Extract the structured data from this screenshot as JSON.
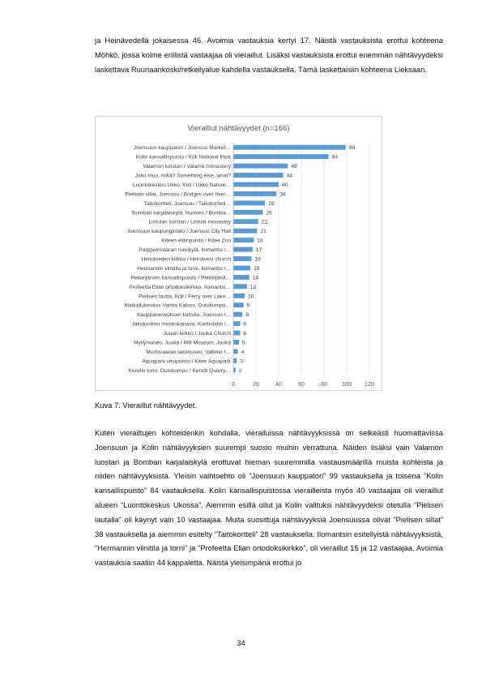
{
  "paragraph_1": "ja Heinävedellä jokaisessa 46. Avoimia vastauksia kertyi 17. Näistä vastauksista erottui kohteena Möhkö, jossa kolme erillistä vastaajaa oli vieraillut. Lisäksi vastauksista erottui enemmän nähtävyydeksi laskettava Ruunaankoski/retkeilyalue kahdella vastauksella. Tämä laskettaisiin kohteena Lieksaan.",
  "caption": "Kuva 7. Vieraillut nähtävyydet.",
  "paragraph_2": "Kuten vierailtujen kohteidenkin kohdalla, vierailuissa nähtävyyksissä on selkeästi huomattavissa Joensuun ja Kolin nähtävyyksien suurempi suosio muihin verrattuna. Näiden lisäksi vain Valamon luostari ja Bomban karjalaiskylä erottuvat hieman suuremmilla vastausmäärillä muista kohteista ja niiden nähtävyyksistä. Yleisin vaihtoehto oli ”Joensuun kauppatori” 99 vastauksella ja toisena ”Kolin kansallispuisto” 84 vastauksella. Kolin kansallispuistossa vierailleista myös 40 vastaajaa oli vieraillut alueen ”Luontokeskus Ukossa”. Aiemmin esillä ollut ja Kolin valituksi nähtävyydeksi otetulla ”Pielisen lautalla” oli käynyt vain 10 vastaajaa. Muita suosittuja nähtävyyksiä Joensuussa olivat ”Pielisen sillat” 38 vastauksella ja aiemmin esitelty ”Taitokortteli” 28 vastauksella. Ilomantsin esitellyistä nähtävyyksistä, ”Hermannin viinitila ja torni” ja ”Profeetta Elian ortodoksikirkko”, oli vieraillut 15 ja 12 vastaajaa. Avoimia vastauksia saatiin 44 kappaletta. Näistä yleisimpänä erottui jo",
  "page_number": "34",
  "chart_data": {
    "type": "bar",
    "orientation": "horizontal",
    "title": "Vieraillut nähtävyydet (n=166)",
    "xlabel": "",
    "ylabel": "",
    "xlim": [
      0,
      120
    ],
    "x_ticks": [
      "0",
      "20",
      "40",
      "60",
      "80",
      "100",
      "120"
    ],
    "grid": true,
    "bar_color": "#5b9bd5",
    "categories": [
      "Joensuun kauppatori / Joensuu Market…",
      "Kolin kansallispuisto / Koli National Park",
      "Valamon luostari / Valamo monastery",
      "Joku muu, mikä? Something else, what?",
      "Luontokeskus Ukko, Koli / Ukko Nature…",
      "Pielisen sillat, Joensuu / Bridges over river…",
      "Taitokortteli, Joensuu / Taitokortteli…",
      "Bomban karjalaiskylä, Nurmes / Bomba…",
      "Lintulan luostari / Lintula monastey",
      "Joensuun kaupungintalo / Joensuu City Hall",
      "Kiteen eläinpuisto / Kitee Zoo",
      "Parppeinvaaran runokylä, Ilomantsi /…",
      "Heinäveden kirkko / Heinävesi church",
      "Hermannin viinitila ja torni, Ilomantsi /…",
      "Petkeljärven kansallispuisto / Petkeljärvi…",
      "Profeetta Elian ortodoksikirkko, Ilomantsi…",
      "Pielisen lautta, Koli / Ferry over Lake…",
      "Matkailukeskus Vanha Kaivos, Outokumpu…",
      "Kauppaneuvoksen kahvila, Joensuu /…",
      "Jakokosken museokanava, Kontiolahti /…",
      "Juuan kirkko / Juuka Church",
      "Myllymuseo, Juuka / Mill Museum, Juuka",
      "Murtovaaran talomuseo, Valtimo /…",
      "Aquapark vesipuisto / Kitee Aquapark",
      "Keretin torni, Outokumpu / Keretti Quarry…"
    ],
    "values": [
      99,
      84,
      48,
      44,
      40,
      38,
      28,
      26,
      22,
      21,
      18,
      17,
      16,
      15,
      14,
      12,
      10,
      9,
      8,
      6,
      6,
      5,
      4,
      3,
      2
    ]
  }
}
